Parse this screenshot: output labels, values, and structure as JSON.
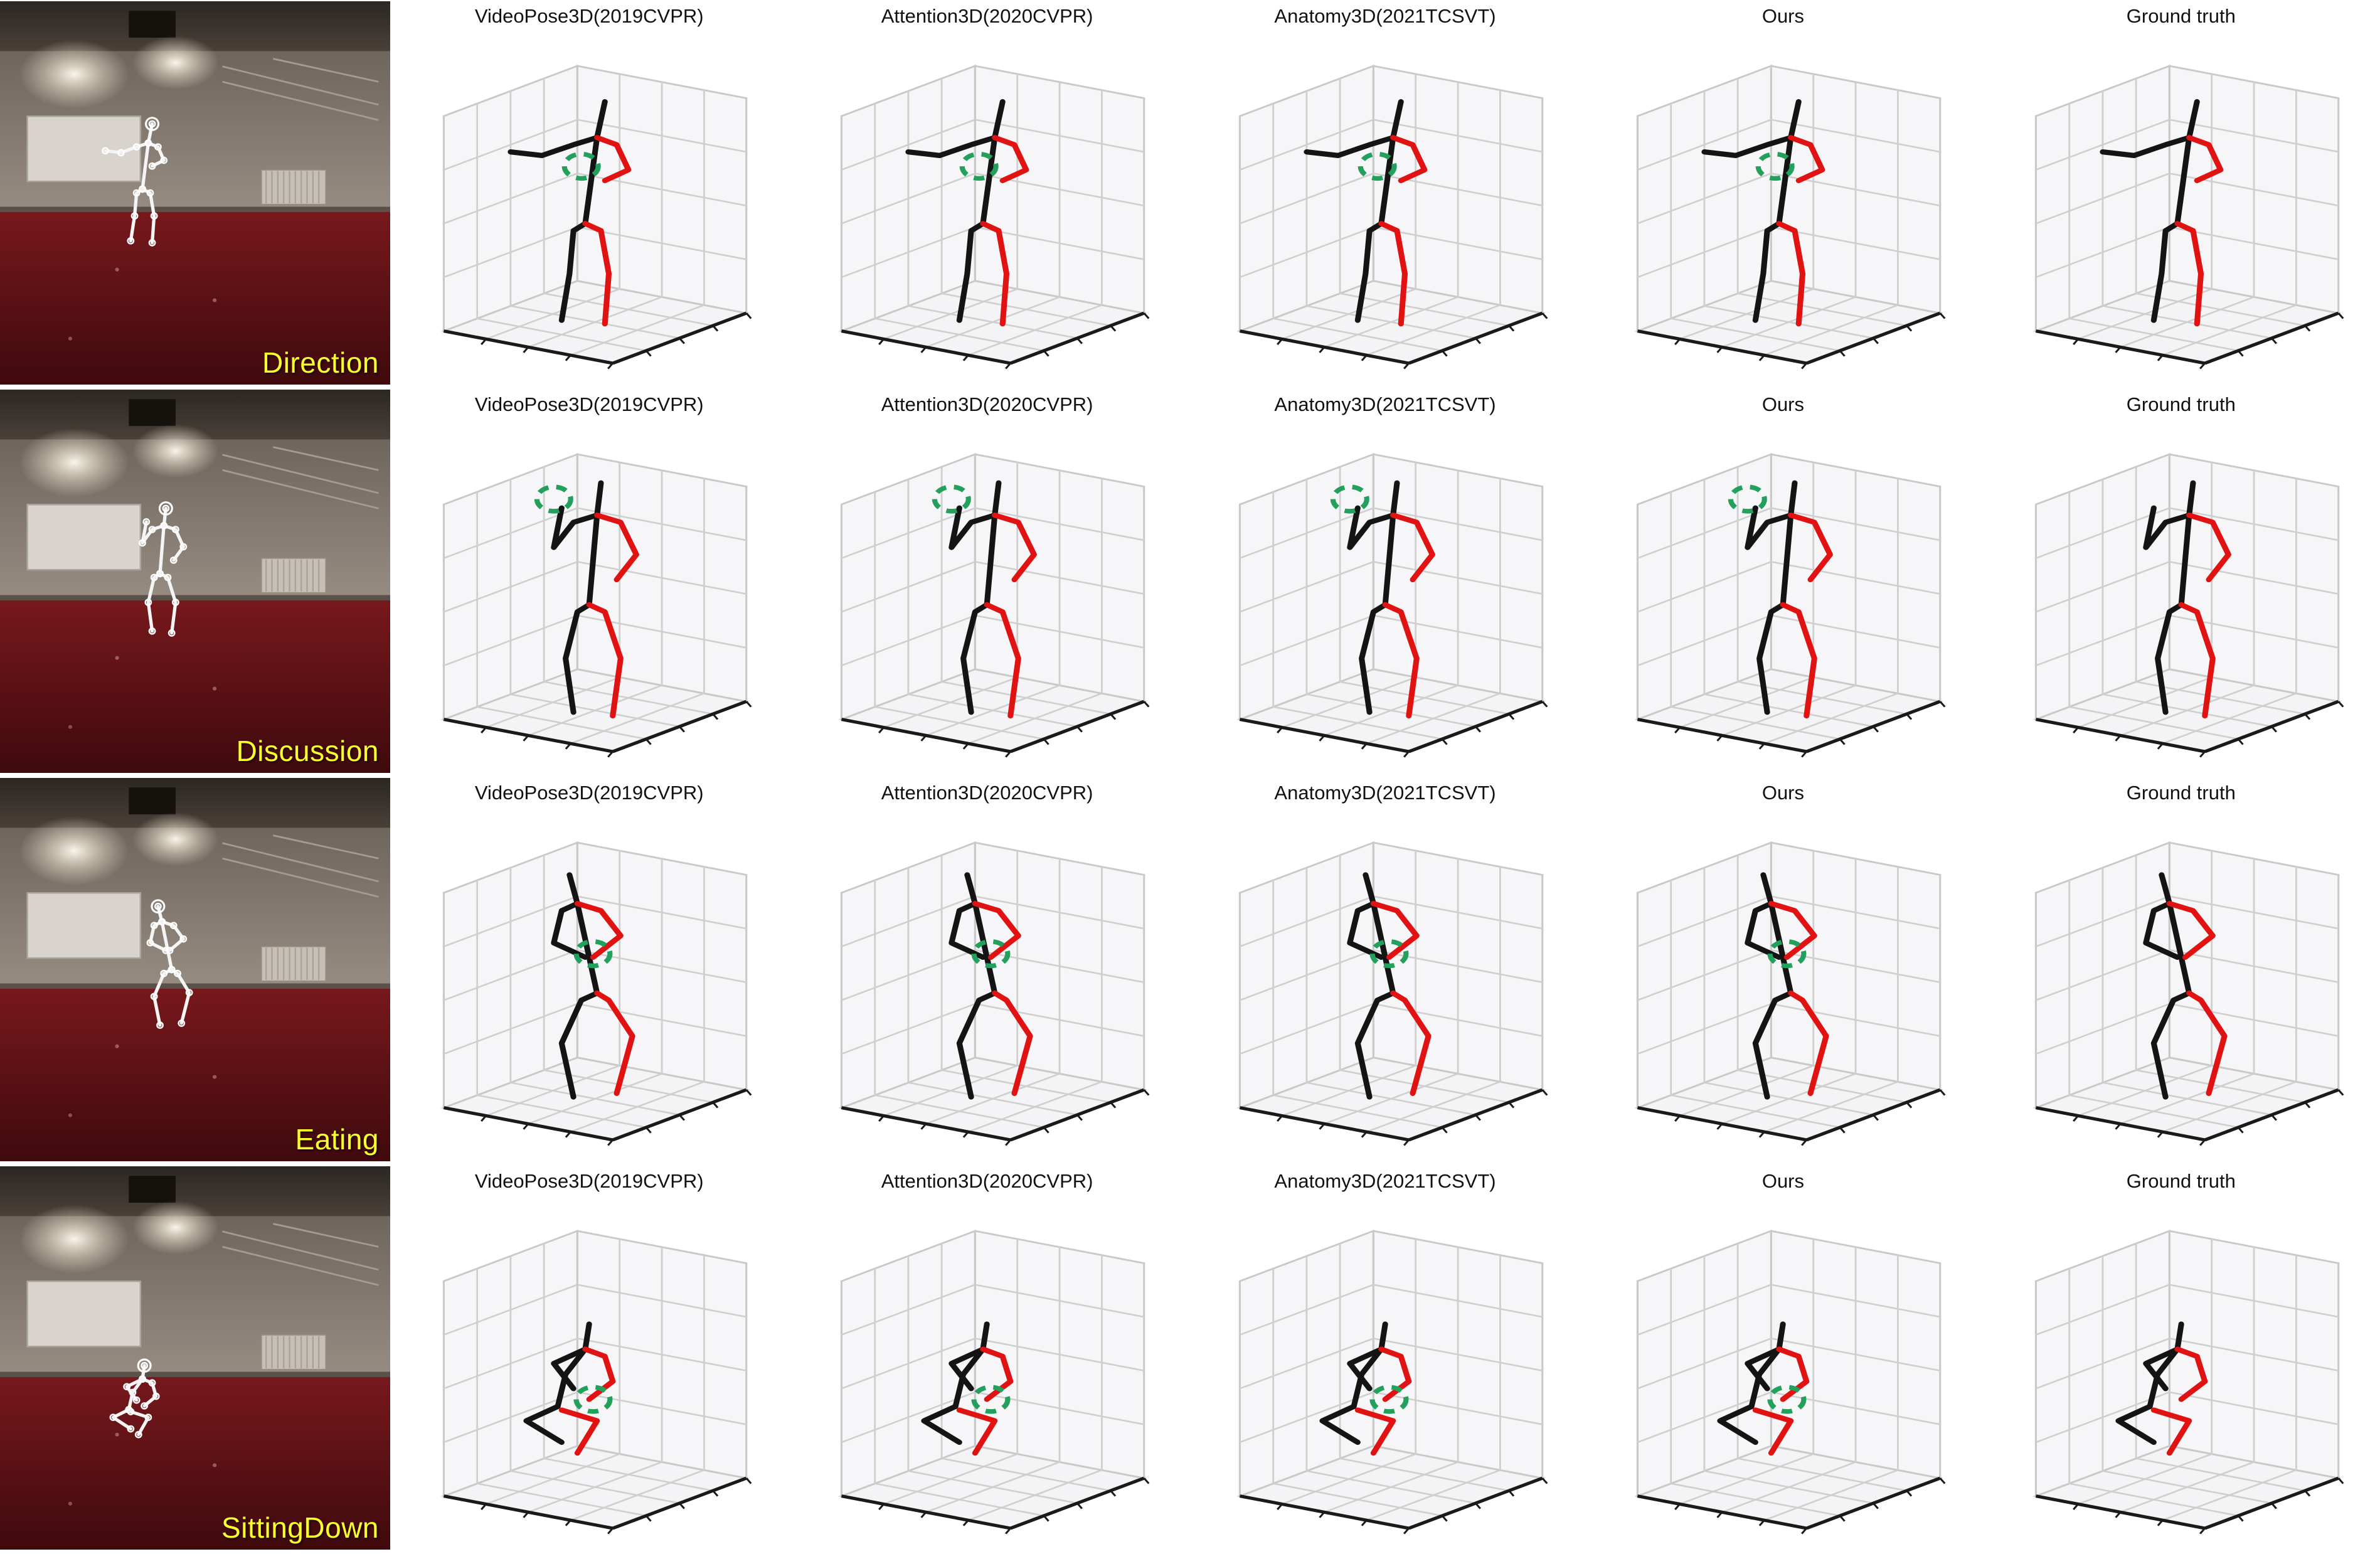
{
  "rows": [
    {
      "action": "Direction",
      "plots": [
        {
          "title": "VideoPose3D(2019CVPR)",
          "highlight": true
        },
        {
          "title": "Attention3D(2020CVPR)",
          "highlight": true
        },
        {
          "title": "Anatomy3D(2021TCSVT)",
          "highlight": true
        },
        {
          "title": "Ours",
          "highlight": true
        },
        {
          "title": "Ground truth",
          "highlight": false
        }
      ]
    },
    {
      "action": "Discussion",
      "plots": [
        {
          "title": "VideoPose3D(2019CVPR)",
          "highlight": true
        },
        {
          "title": "Attention3D(2020CVPR)",
          "highlight": true
        },
        {
          "title": "Anatomy3D(2021TCSVT)",
          "highlight": true
        },
        {
          "title": "Ours",
          "highlight": true
        },
        {
          "title": "Ground truth",
          "highlight": false
        }
      ]
    },
    {
      "action": "Eating",
      "plots": [
        {
          "title": "VideoPose3D(2019CVPR)",
          "highlight": true
        },
        {
          "title": "Attention3D(2020CVPR)",
          "highlight": true
        },
        {
          "title": "Anatomy3D(2021TCSVT)",
          "highlight": true
        },
        {
          "title": "Ours",
          "highlight": true
        },
        {
          "title": "Ground truth",
          "highlight": false
        }
      ]
    },
    {
      "action": "SittingDown",
      "plots": [
        {
          "title": "VideoPose3D(2019CVPR)",
          "highlight": true
        },
        {
          "title": "Attention3D(2020CVPR)",
          "highlight": true
        },
        {
          "title": "Anatomy3D(2021TCSVT)",
          "highlight": true
        },
        {
          "title": "Ours",
          "highlight": true
        },
        {
          "title": "Ground truth",
          "highlight": false
        }
      ]
    }
  ],
  "poses": {
    "Direction": {
      "highlight": [
        48,
        38
      ],
      "segments": [
        {
          "color": "black",
          "pts": [
            [
              52,
              30
            ],
            [
              54,
              20
            ]
          ]
        },
        {
          "color": "black",
          "pts": [
            [
              52,
              30
            ],
            [
              49,
              54
            ]
          ]
        },
        {
          "color": "black",
          "pts": [
            [
              52,
              30
            ],
            [
              46,
              32
            ],
            [
              38,
              35
            ],
            [
              30,
              34
            ]
          ]
        },
        {
          "color": "red",
          "pts": [
            [
              52,
              30
            ],
            [
              57,
              32
            ],
            [
              60,
              39
            ],
            [
              54,
              42
            ]
          ]
        },
        {
          "color": "black",
          "pts": [
            [
              49,
              54
            ],
            [
              46,
              56
            ],
            [
              45,
              68
            ],
            [
              43,
              81
            ]
          ]
        },
        {
          "color": "red",
          "pts": [
            [
              49,
              54
            ],
            [
              53,
              56
            ],
            [
              55,
              68
            ],
            [
              54,
              82
            ]
          ]
        }
      ]
    },
    "Discussion": {
      "highlight": [
        41,
        22.5
      ],
      "segments": [
        {
          "color": "black",
          "pts": [
            [
              52,
              27
            ],
            [
              53,
              18
            ]
          ]
        },
        {
          "color": "black",
          "pts": [
            [
              52,
              27
            ],
            [
              50,
              52
            ]
          ]
        },
        {
          "color": "black",
          "pts": [
            [
              52,
              27
            ],
            [
              46,
              29
            ],
            [
              41,
              36
            ],
            [
              43,
              25
            ]
          ]
        },
        {
          "color": "red",
          "pts": [
            [
              52,
              27
            ],
            [
              58,
              29
            ],
            [
              62,
              38
            ],
            [
              57,
              45
            ]
          ]
        },
        {
          "color": "black",
          "pts": [
            [
              50,
              52
            ],
            [
              47,
              54
            ],
            [
              44,
              67
            ],
            [
              46,
              82
            ]
          ]
        },
        {
          "color": "red",
          "pts": [
            [
              50,
              52
            ],
            [
              54,
              54
            ],
            [
              58,
              67
            ],
            [
              56,
              83
            ]
          ]
        }
      ]
    },
    "Eating": {
      "highlight": [
        51,
        41
      ],
      "segments": [
        {
          "color": "black",
          "pts": [
            [
              47,
              27
            ],
            [
              45,
              19
            ]
          ]
        },
        {
          "color": "black",
          "pts": [
            [
              47,
              27
            ],
            [
              52,
              52
            ]
          ]
        },
        {
          "color": "black",
          "pts": [
            [
              47,
              27
            ],
            [
              43,
              29
            ],
            [
              41,
              38
            ],
            [
              49,
              42
            ]
          ]
        },
        {
          "color": "red",
          "pts": [
            [
              47,
              27
            ],
            [
              53,
              29
            ],
            [
              58,
              36
            ],
            [
              51,
              42
            ]
          ]
        },
        {
          "color": "black",
          "pts": [
            [
              52,
              52
            ],
            [
              48,
              54
            ],
            [
              43,
              66
            ],
            [
              46,
              81
            ]
          ]
        },
        {
          "color": "red",
          "pts": [
            [
              52,
              52
            ],
            [
              55,
              54
            ],
            [
              61,
              64
            ],
            [
              57,
              80
            ]
          ]
        }
      ]
    },
    "SittingDown": {
      "highlight": [
        51,
        57
      ],
      "segments": [
        {
          "color": "black",
          "pts": [
            [
              49,
              43
            ],
            [
              50,
              36
            ]
          ]
        },
        {
          "color": "black",
          "pts": [
            [
              49,
              43
            ],
            [
              44,
              50
            ],
            [
              42,
              59
            ]
          ]
        },
        {
          "color": "black",
          "pts": [
            [
              49,
              43
            ],
            [
              41,
              47
            ],
            [
              46,
              54
            ]
          ]
        },
        {
          "color": "red",
          "pts": [
            [
              49,
              43
            ],
            [
              54,
              45
            ],
            [
              56,
              52
            ],
            [
              50,
              57
            ]
          ]
        },
        {
          "color": "black",
          "pts": [
            [
              42,
              59
            ],
            [
              34,
              63
            ],
            [
              43,
              69
            ]
          ]
        },
        {
          "color": "red",
          "pts": [
            [
              43,
              60
            ],
            [
              52,
              63
            ],
            [
              47,
              72
            ]
          ]
        }
      ]
    }
  },
  "colors": {
    "limb_dark": "#141414",
    "limb_red": "#e01212",
    "highlight": "#22a05c",
    "action_label": "#fdfd2e",
    "plot_title": "#111111",
    "photo_floor": "#5a1013",
    "photo_wall": "#8a8078"
  }
}
